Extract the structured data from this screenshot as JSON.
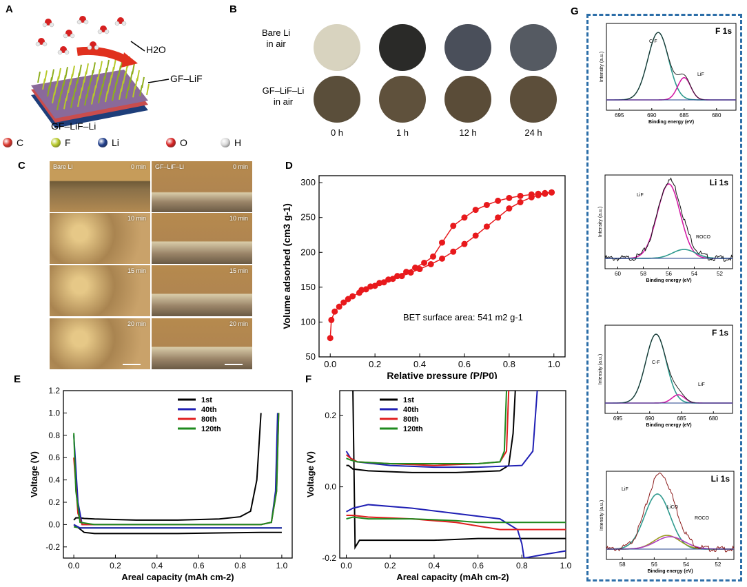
{
  "panels": {
    "A": "A",
    "B": "B",
    "C": "C",
    "D": "D",
    "E": "E",
    "F": "F",
    "G": "G"
  },
  "panelA": {
    "water_label": "H2O",
    "layer_label": "GF–LiF",
    "bottom_label": "GF–LiF–Li",
    "legend": [
      {
        "symbol": "C",
        "color": "#d9342b"
      },
      {
        "symbol": "F",
        "color": "#b7c92a"
      },
      {
        "symbol": "Li",
        "color": "#1f3d8a"
      },
      {
        "symbol": "O",
        "color": "#d62020"
      },
      {
        "symbol": "H",
        "color": "#d8d8d8"
      }
    ]
  },
  "panelB": {
    "row1_label_1": "Bare Li",
    "row1_label_2": "in air",
    "row2_label_1": "GF–LiF–Li",
    "row2_label_2": "in air",
    "times": [
      "0 h",
      "1 h",
      "12 h",
      "24 h"
    ],
    "row1_colors": [
      "#d8d3bf",
      "#2a2a28",
      "#4a4f5a",
      "#555a62"
    ],
    "row2_colors": [
      "#5a4e3a",
      "#5f513c",
      "#5a4c38",
      "#5c4e3a"
    ]
  },
  "panelC": {
    "col1_label": "Bare Li",
    "col2_label": "GF–LiF–Li",
    "times": [
      "0 min",
      "10 min",
      "15 min",
      "20 min"
    ]
  },
  "chart_data": [
    {
      "id": "D",
      "type": "line",
      "title": "",
      "xlabel": "Relative pressure (P/P0)",
      "ylabel": "Volume adsorbed (cm3 g-1)",
      "xlim": [
        -0.05,
        1.05
      ],
      "ylim": [
        50,
        310
      ],
      "xticks": [
        "0.0",
        "0.2",
        "0.4",
        "0.6",
        "0.8",
        "1.0"
      ],
      "yticks": [
        "50",
        "100",
        "150",
        "200",
        "250",
        "300"
      ],
      "annotation": "BET surface area: 541 m2 g-1",
      "series": [
        {
          "name": "adsorption",
          "color": "#e8191c",
          "x": [
            0.0,
            0.005,
            0.02,
            0.04,
            0.06,
            0.08,
            0.1,
            0.13,
            0.16,
            0.2,
            0.24,
            0.28,
            0.32,
            0.36,
            0.4,
            0.45,
            0.5,
            0.55,
            0.6,
            0.65,
            0.7,
            0.75,
            0.8,
            0.85,
            0.9,
            0.93,
            0.96,
            0.99
          ],
          "y": [
            77,
            103,
            115,
            122,
            128,
            133,
            137,
            142,
            147,
            152,
            157,
            162,
            166,
            171,
            176,
            183,
            191,
            201,
            212,
            224,
            237,
            250,
            263,
            272,
            279,
            282,
            284,
            286
          ]
        },
        {
          "name": "desorption",
          "color": "#e8191c",
          "x": [
            0.99,
            0.96,
            0.93,
            0.9,
            0.85,
            0.8,
            0.75,
            0.7,
            0.65,
            0.6,
            0.55,
            0.5,
            0.46,
            0.42,
            0.38,
            0.34,
            0.3,
            0.26,
            0.22,
            0.18,
            0.14
          ],
          "y": [
            286,
            285,
            284,
            283,
            281,
            278,
            274,
            268,
            261,
            250,
            238,
            214,
            194,
            185,
            178,
            172,
            166,
            161,
            156,
            151,
            146
          ]
        }
      ]
    },
    {
      "id": "E",
      "type": "line",
      "xlabel": "Areal capacity (mAh cm-2)",
      "ylabel": "Voltage (V)",
      "xlim": [
        -0.05,
        1.05
      ],
      "ylim": [
        -0.3,
        1.2
      ],
      "xticks": [
        "0.0",
        "0.2",
        "0.4",
        "0.6",
        "0.8",
        "1.0"
      ],
      "yticks": [
        "-0.2",
        "0.0",
        "0.2",
        "0.4",
        "0.6",
        "0.8",
        "1.0",
        "1.2"
      ],
      "series": [
        {
          "name": "1st",
          "color": "#000000",
          "x": [
            0.0,
            0.01,
            0.02,
            0.03,
            0.05,
            0.1,
            0.3,
            0.5,
            0.7,
            0.8,
            0.85,
            0.88,
            0.9
          ],
          "y": [
            0.04,
            0.06,
            0.06,
            0.06,
            0.055,
            0.05,
            0.04,
            0.04,
            0.05,
            0.07,
            0.12,
            0.4,
            1.0
          ]
        },
        {
          "name": "1st-strip",
          "color": "#000000",
          "x": [
            0.0,
            0.03,
            0.05,
            0.1,
            0.3,
            0.5,
            0.7,
            0.9,
            1.0
          ],
          "y": [
            0.0,
            -0.04,
            -0.07,
            -0.08,
            -0.08,
            -0.08,
            -0.075,
            -0.07,
            -0.07
          ]
        },
        {
          "name": "40th",
          "color": "#1f1fb4",
          "x": [
            0.0,
            0.02,
            0.04,
            0.1,
            0.5,
            0.9,
            0.95,
            0.97,
            0.98
          ],
          "y": [
            0.8,
            0.2,
            0.0,
            0.0,
            0.0,
            0.0,
            0.02,
            0.3,
            1.0
          ]
        },
        {
          "name": "80th",
          "color": "#e01e1e",
          "x": [
            0.0,
            0.02,
            0.04,
            0.1,
            0.5,
            0.9,
            0.95,
            0.975,
            0.985
          ],
          "y": [
            0.6,
            0.1,
            0.0,
            0.0,
            0.0,
            0.0,
            0.02,
            0.3,
            1.0
          ]
        },
        {
          "name": "120th",
          "color": "#1e8a1e",
          "x": [
            0.0,
            0.01,
            0.03,
            0.1,
            0.5,
            0.9,
            0.95,
            0.975,
            0.985
          ],
          "y": [
            0.82,
            0.3,
            0.02,
            0.0,
            0.0,
            0.0,
            0.02,
            0.3,
            1.0
          ]
        },
        {
          "name": "120th-strip",
          "color": "#1e8a1e",
          "x": [
            0.0,
            0.03,
            0.1,
            0.5,
            1.0
          ],
          "y": [
            -0.02,
            -0.03,
            -0.03,
            -0.03,
            -0.03
          ]
        },
        {
          "name": "40th-strip",
          "color": "#1f1fb4",
          "x": [
            0.0,
            0.03,
            0.1,
            0.5,
            1.0
          ],
          "y": [
            0.0,
            -0.03,
            -0.03,
            -0.03,
            -0.03
          ]
        }
      ],
      "legend": [
        "1st",
        "40th",
        "80th",
        "120th"
      ],
      "legend_colors": [
        "#000000",
        "#1f1fb4",
        "#e01e1e",
        "#1e8a1e"
      ]
    },
    {
      "id": "F",
      "type": "line",
      "xlabel": "Areal capacity (mAh cm-2)",
      "ylabel": "Voltage (V)",
      "xlim": [
        -0.03,
        1.0
      ],
      "ylim": [
        -0.2,
        0.27
      ],
      "xticks": [
        "0.0",
        "0.2",
        "0.4",
        "0.6",
        "0.8",
        "1.0"
      ],
      "yticks": [
        "-0.2",
        "0.0",
        "0.2"
      ],
      "series": [
        {
          "name": "1st",
          "color": "#000000",
          "x": [
            0.0,
            0.01,
            0.03,
            0.1,
            0.3,
            0.5,
            0.7,
            0.74,
            0.76,
            0.77
          ],
          "y": [
            0.06,
            0.06,
            0.05,
            0.045,
            0.04,
            0.04,
            0.045,
            0.06,
            0.15,
            0.27
          ]
        },
        {
          "name": "1st-strip",
          "color": "#000000",
          "x": [
            0.03,
            0.04,
            0.06,
            0.2,
            0.4,
            0.6,
            0.8,
            1.0
          ],
          "y": [
            0.27,
            -0.17,
            -0.15,
            -0.15,
            -0.15,
            -0.145,
            -0.145,
            -0.145
          ]
        },
        {
          "name": "40th",
          "color": "#1f1fb4",
          "x": [
            0.0,
            0.02,
            0.05,
            0.2,
            0.4,
            0.6,
            0.8,
            0.85,
            0.87
          ],
          "y": [
            0.1,
            0.08,
            0.07,
            0.06,
            0.055,
            0.055,
            0.06,
            0.1,
            0.27
          ]
        },
        {
          "name": "40th-strip",
          "color": "#1f1fb4",
          "x": [
            0.0,
            0.03,
            0.1,
            0.3,
            0.5,
            0.7,
            0.78,
            0.8,
            0.81,
            0.9,
            1.0
          ],
          "y": [
            -0.07,
            -0.06,
            -0.05,
            -0.06,
            -0.075,
            -0.09,
            -0.12,
            -0.16,
            -0.2,
            -0.19,
            -0.18
          ]
        },
        {
          "name": "80th",
          "color": "#e01e1e",
          "x": [
            0.0,
            0.02,
            0.05,
            0.2,
            0.4,
            0.6,
            0.7,
            0.73,
            0.74
          ],
          "y": [
            0.09,
            0.08,
            0.07,
            0.065,
            0.06,
            0.065,
            0.07,
            0.1,
            0.27
          ]
        },
        {
          "name": "80th-strip",
          "color": "#e01e1e",
          "x": [
            0.0,
            0.03,
            0.1,
            0.3,
            0.5,
            0.6,
            0.7,
            0.8,
            1.0
          ],
          "y": [
            -0.08,
            -0.08,
            -0.085,
            -0.09,
            -0.1,
            -0.11,
            -0.12,
            -0.12,
            -0.12
          ]
        },
        {
          "name": "120th",
          "color": "#1e8a1e",
          "x": [
            0.0,
            0.02,
            0.05,
            0.2,
            0.4,
            0.6,
            0.7,
            0.72,
            0.73
          ],
          "y": [
            0.08,
            0.075,
            0.07,
            0.065,
            0.065,
            0.065,
            0.07,
            0.1,
            0.27
          ]
        },
        {
          "name": "120th-strip",
          "color": "#1e8a1e",
          "x": [
            0.0,
            0.03,
            0.1,
            0.3,
            0.5,
            0.6,
            0.7,
            0.8,
            1.0
          ],
          "y": [
            -0.09,
            -0.085,
            -0.09,
            -0.09,
            -0.095,
            -0.1,
            -0.1,
            -0.1,
            -0.1
          ]
        }
      ],
      "legend": [
        "1st",
        "40th",
        "80th",
        "120th"
      ],
      "legend_colors": [
        "#000000",
        "#1f1fb4",
        "#e01e1e",
        "#1e8a1e"
      ]
    },
    {
      "id": "G1",
      "type": "line",
      "element": "F 1s",
      "xlabel": "Binding energy (eV)",
      "ylabel": "Intensity (a.u.)",
      "xlim": [
        697,
        677
      ],
      "xticks": [
        "695",
        "690",
        "685",
        "680"
      ],
      "peaks": [
        {
          "label": "C-F",
          "center": 689,
          "height": 1.0,
          "width": 1.6,
          "color": "#2e9a8e"
        },
        {
          "label": "LiF",
          "center": 685,
          "height": 0.33,
          "width": 1.0,
          "color": "#d41ca6"
        }
      ]
    },
    {
      "id": "G2",
      "type": "line",
      "element": "Li 1s",
      "xlabel": "Binding energy (eV)",
      "ylabel": "Intensity (a.u.)",
      "xlim": [
        61,
        51
      ],
      "xticks": [
        "60",
        "58",
        "56",
        "54",
        "52"
      ],
      "peaks": [
        {
          "label": "LiF",
          "center": 56,
          "height": 1.0,
          "width": 0.9,
          "color": "#d41ca6"
        },
        {
          "label": "ROCO2Li",
          "center": 54.8,
          "height": 0.12,
          "width": 0.9,
          "color": "#2e9a8e"
        }
      ]
    },
    {
      "id": "G3",
      "type": "line",
      "element": "F 1s",
      "xlabel": "Binding energy (eV)",
      "ylabel": "Intensity (a.u.)",
      "xlim": [
        697,
        677
      ],
      "xticks": [
        "695",
        "690",
        "685",
        "680"
      ],
      "peaks": [
        {
          "label": "C-F",
          "center": 689,
          "height": 1.0,
          "width": 1.6,
          "color": "#2e9a8e"
        },
        {
          "label": "LiF",
          "center": 685.5,
          "height": 0.12,
          "width": 1.0,
          "color": "#d41ca6"
        }
      ]
    },
    {
      "id": "G4",
      "type": "line",
      "element": "Li 1s",
      "xlabel": "Binding energy (eV)",
      "ylabel": "Intensity (a.u.)",
      "xlim": [
        59,
        51
      ],
      "xticks": [
        "58",
        "56",
        "54",
        "52"
      ],
      "peaks": [
        {
          "label": "LiF",
          "center": 55.8,
          "height": 0.8,
          "width": 0.8,
          "color": "#2e9a8e"
        },
        {
          "label": "LiCO3",
          "center": 55.2,
          "height": 0.2,
          "width": 0.8,
          "color": "#9a9a20"
        },
        {
          "label": "ROCO2Li",
          "center": 55.0,
          "height": 0.18,
          "width": 0.9,
          "color": "#b040c0"
        }
      ]
    }
  ]
}
